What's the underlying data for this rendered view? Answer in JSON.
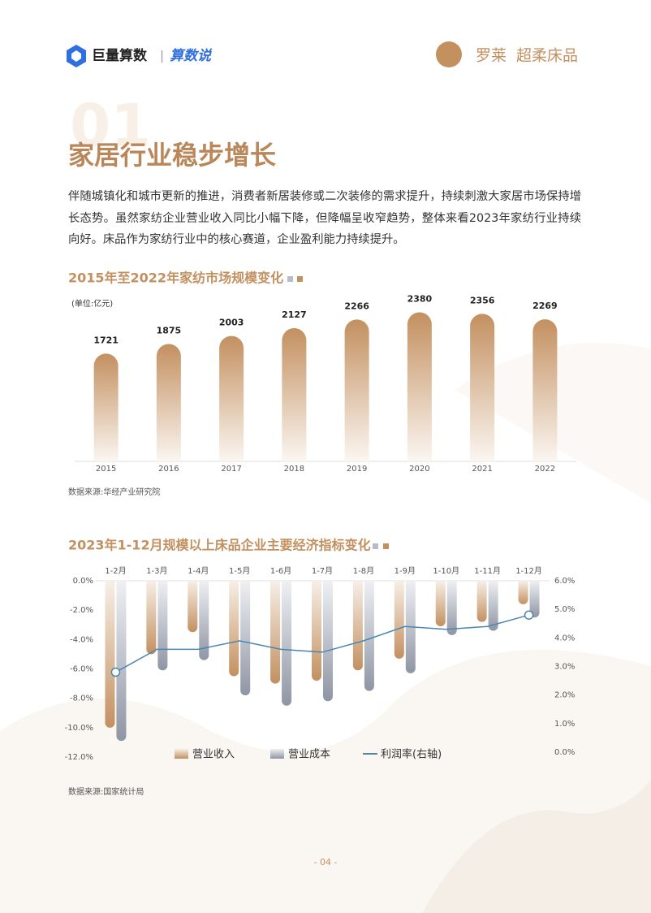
{
  "header": {
    "brand": "巨量算数",
    "separator": "|",
    "column": "算数说",
    "partner": "罗莱",
    "partner_slogan": "超柔床品"
  },
  "section": {
    "number": "01",
    "title": "家居行业稳步增长",
    "paragraph": "伴随城镇化和城市更新的推进，消费者新居装修或二次装修的需求提升，持续刺激大家居市场保持增长态势。虽然家纺企业营业收入同比小幅下降，但降幅呈收窄趋势，整体来看2023年家纺行业持续向好。床品作为家纺行业中的核心赛道，企业盈利能力持续提升。"
  },
  "chart_data": [
    {
      "type": "bar",
      "title": "2015年至2022年家纺市场规模变化",
      "unit": "(单位:亿元)",
      "categories": [
        "2015",
        "2016",
        "2017",
        "2018",
        "2019",
        "2020",
        "2021",
        "2022"
      ],
      "values": [
        1721,
        1875,
        2003,
        2127,
        2266,
        2380,
        2356,
        2269
      ],
      "color": "#c39060",
      "ylim": [
        0,
        2400
      ],
      "source": "数据来源:华经产业研究院"
    },
    {
      "type": "bar-line",
      "title": "2023年1-12月规模以上床品企业主要经济指标变化",
      "categories": [
        "1-2月",
        "1-3月",
        "1-4月",
        "1-5月",
        "1-6月",
        "1-7月",
        "1-8月",
        "1-9月",
        "1-10月",
        "1-11月",
        "1-12月"
      ],
      "series": [
        {
          "name": "营业收入",
          "color": "#c39060",
          "values": [
            -10.0,
            -5.0,
            -3.5,
            -6.5,
            -7.0,
            -6.8,
            -6.1,
            -5.3,
            -3.1,
            -2.8,
            -1.6
          ]
        },
        {
          "name": "营业成本",
          "color": "#8f95a3",
          "values": [
            -10.9,
            -6.1,
            -5.4,
            -7.8,
            -8.5,
            -8.2,
            -7.5,
            -6.3,
            -3.7,
            -3.4,
            -2.5
          ]
        },
        {
          "name": "利润率(右轴)",
          "color": "#4a86b0",
          "axis": "y2",
          "values": [
            2.8,
            3.6,
            3.6,
            3.9,
            3.6,
            3.5,
            3.9,
            4.4,
            4.3,
            4.4,
            4.8
          ]
        }
      ],
      "ylim": [
        -12,
        0
      ],
      "yticks": [
        {
          "value": 0,
          "label": "0.0%"
        },
        {
          "value": -2,
          "label": "-2.0%"
        },
        {
          "value": -4,
          "label": "-4.0%"
        },
        {
          "value": -6,
          "label": "-6.0%"
        },
        {
          "value": -8,
          "label": "-8.0%"
        },
        {
          "value": -10,
          "label": "-10.0%"
        },
        {
          "value": -12,
          "label": "-12.0%"
        }
      ],
      "y2lim": [
        0,
        6
      ],
      "y2ticks": [
        {
          "value": 6,
          "label": "6.0%"
        },
        {
          "value": 5,
          "label": "5.0%"
        },
        {
          "value": 4,
          "label": "4.0%"
        },
        {
          "value": 3,
          "label": "3.0%"
        },
        {
          "value": 2,
          "label": "2.0%"
        },
        {
          "value": 1,
          "label": "1.0%"
        },
        {
          "value": 0,
          "label": "0.0%"
        }
      ],
      "source": "数据来源:国家统计局"
    }
  ],
  "page_number": "- 04 -"
}
